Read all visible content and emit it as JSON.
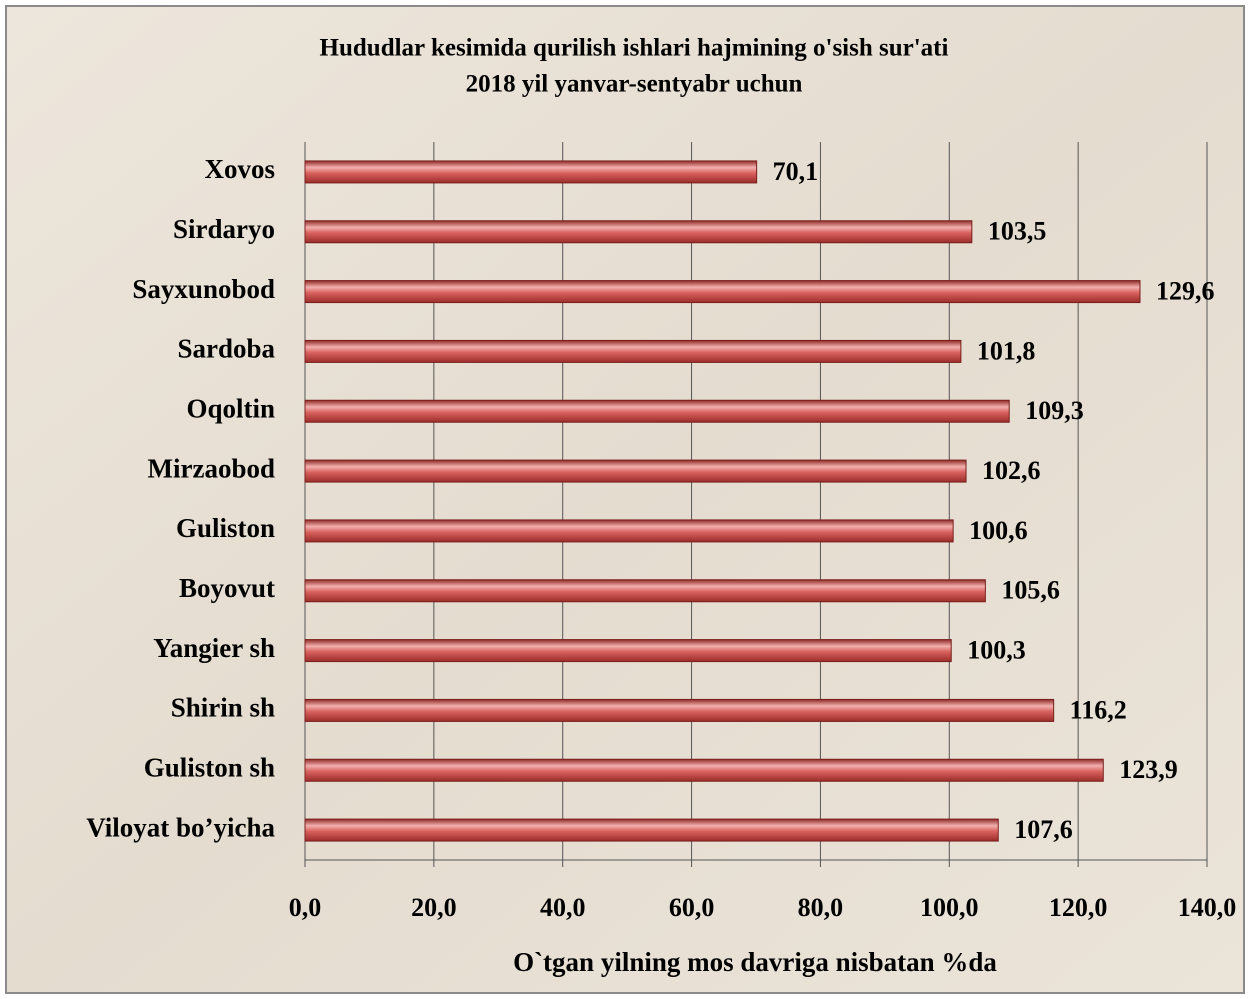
{
  "chart_data": {
    "type": "bar",
    "orientation": "horizontal",
    "title": "Hududlar kesimida qurilish ishlari hajmining o'sish sur'ati",
    "subtitle": "2018 yil yanvar-sentyabr uchun",
    "x_label": "O`tgan yilning mos davriga nisbatan %da",
    "categories": [
      "Xovos",
      "Sirdaryo",
      "Sayxunobod",
      "Sardoba",
      "Oqoltin",
      "Mirzaobod",
      "Guliston",
      "Boyovut",
      "Yangier sh",
      "Shirin sh",
      "Guliston sh",
      "Viloyat bo’yicha"
    ],
    "values": [
      70.1,
      103.5,
      129.6,
      101.8,
      109.3,
      102.6,
      100.6,
      105.6,
      100.3,
      116.2,
      123.9,
      107.6
    ],
    "value_labels": [
      "70,1",
      "103,5",
      "129,6",
      "101,8",
      "109,3",
      "102,6",
      "100,6",
      "105,6",
      "100,3",
      "116,2",
      "123,9",
      "107,6"
    ],
    "color": "#c0504d",
    "xlim": [
      0,
      140
    ],
    "xticks": [
      {
        "value": 0,
        "label": "0,0"
      },
      {
        "value": 20,
        "label": "20,0"
      },
      {
        "value": 40,
        "label": "40,0"
      },
      {
        "value": 60,
        "label": "60,0"
      },
      {
        "value": 80,
        "label": "80,0"
      },
      {
        "value": 100,
        "label": "100,0"
      },
      {
        "value": 120,
        "label": "120,0"
      },
      {
        "value": 140,
        "label": "140,0"
      }
    ],
    "grid": true
  }
}
